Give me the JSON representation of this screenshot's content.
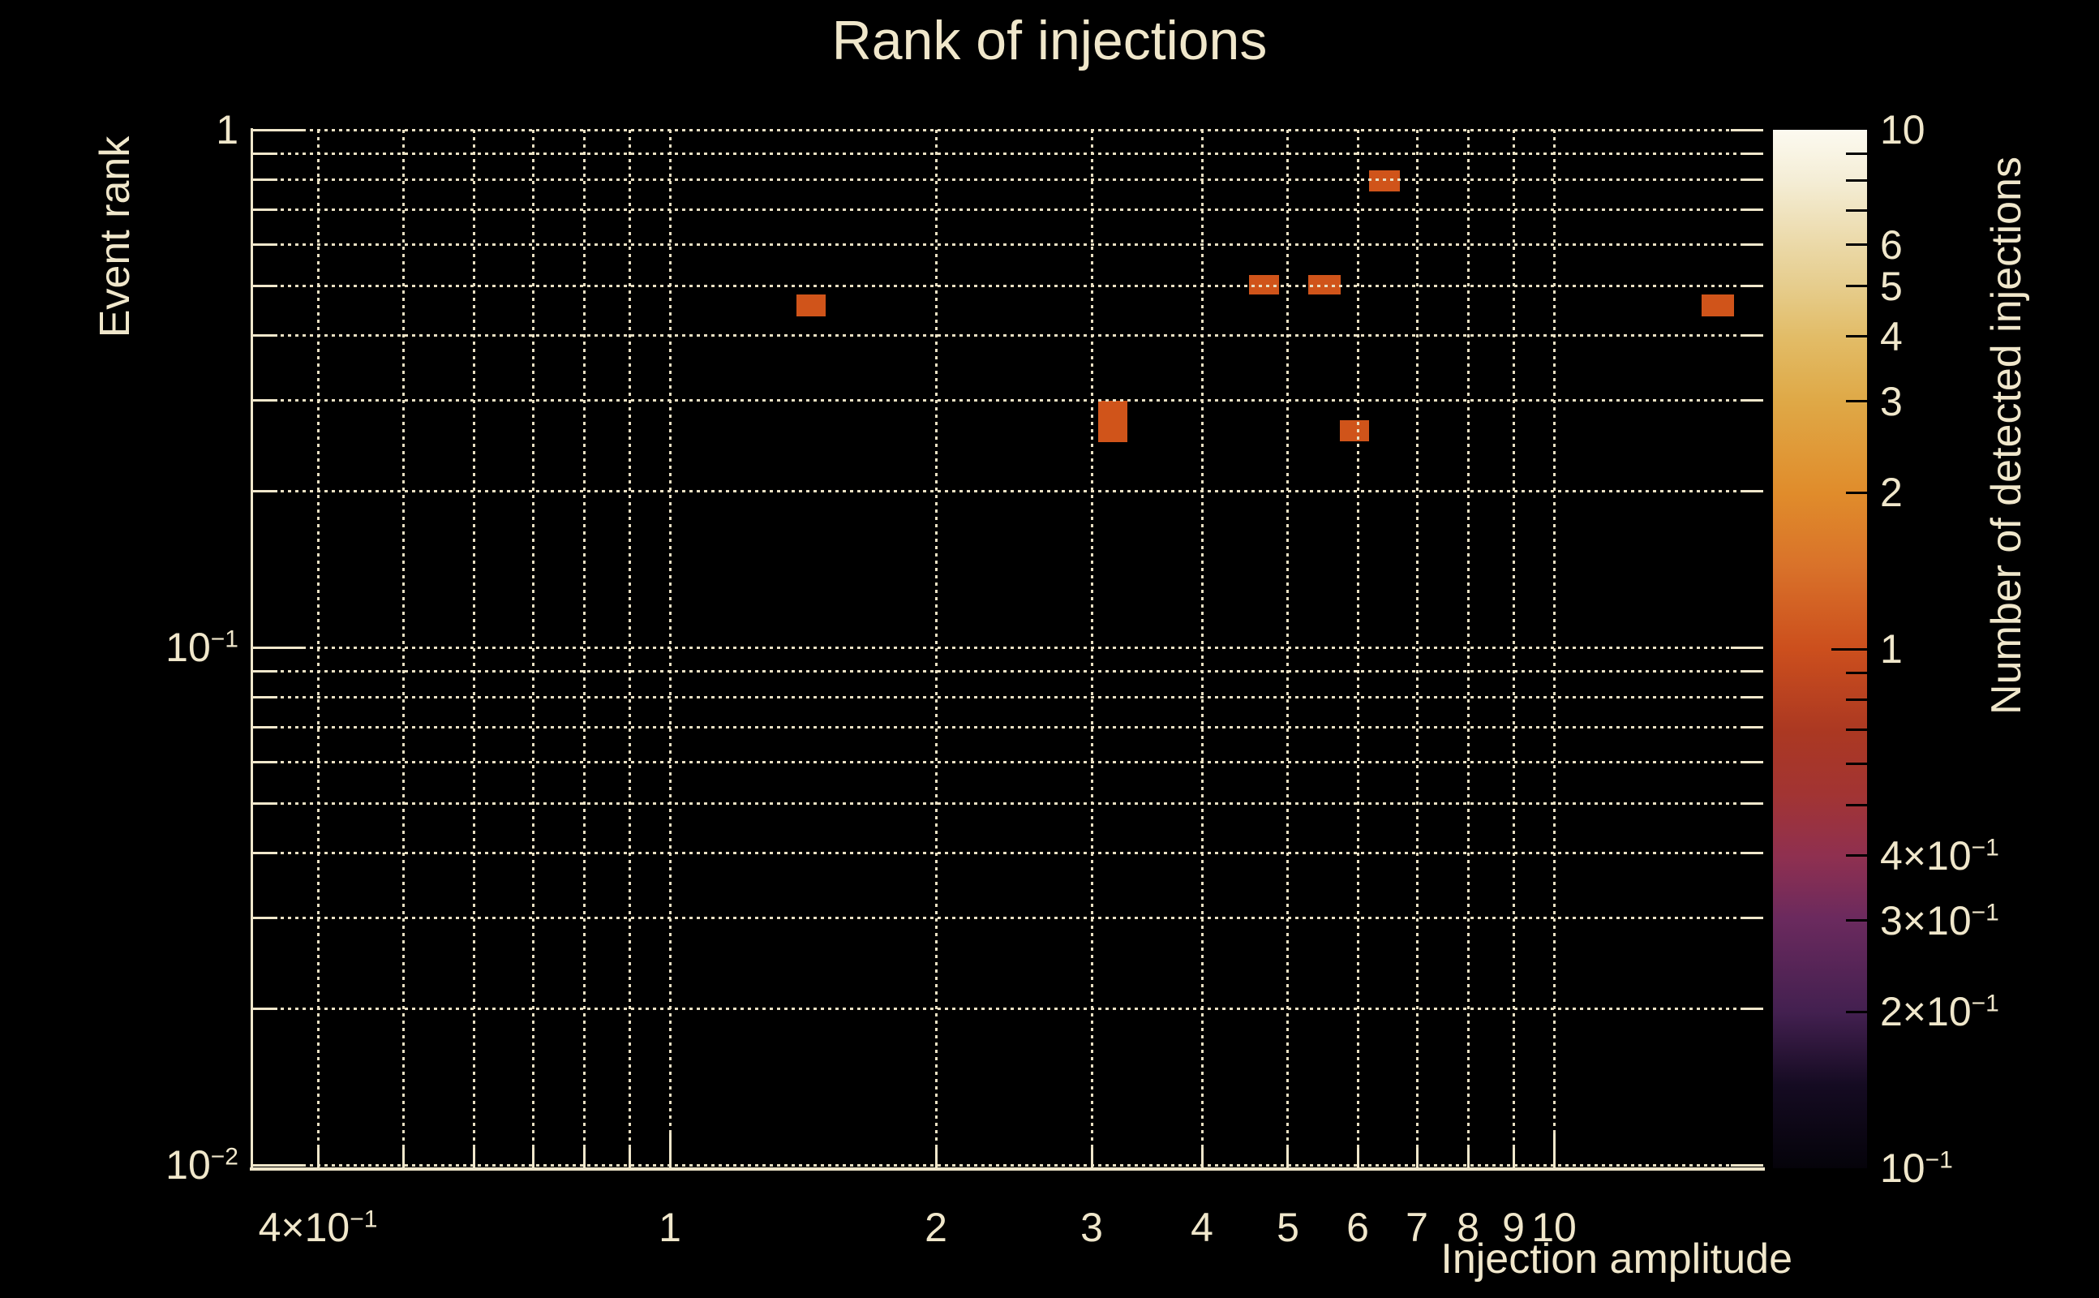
{
  "title": "Rank of injections",
  "colors": {
    "background": "#000000",
    "text": "#f0e7cb",
    "grid": "#eae0c3",
    "spine": "#f0e7cb",
    "bin_fill": "#d0541a",
    "colorbar_tick": "#000000"
  },
  "x_axis": {
    "label": "Injection amplitude",
    "scale": "log",
    "range": [
      0.336,
      17.25
    ],
    "tick_labels": [
      {
        "value": 0.4,
        "text": "4×10",
        "sup": "−1"
      },
      {
        "value": 1,
        "text": "1"
      },
      {
        "value": 2,
        "text": "2"
      },
      {
        "value": 3,
        "text": "3"
      },
      {
        "value": 4,
        "text": "4"
      },
      {
        "value": 5,
        "text": "5"
      },
      {
        "value": 6,
        "text": "6"
      },
      {
        "value": 7,
        "text": "7"
      },
      {
        "value": 8,
        "text": "8"
      },
      {
        "value": 9,
        "text": "9"
      },
      {
        "value": 10,
        "text": "10"
      }
    ],
    "gridline_values": [
      0.4,
      0.5,
      0.6,
      0.7,
      0.8,
      0.9,
      1,
      2,
      3,
      4,
      5,
      6,
      7,
      8,
      9,
      10
    ],
    "major_tick_values": [
      1,
      10
    ]
  },
  "y_axis": {
    "label": "Event rank",
    "scale": "log",
    "range": [
      0.01,
      1
    ],
    "tick_labels": [
      {
        "value": 1,
        "text": "1"
      },
      {
        "value": 0.1,
        "text": "10",
        "sup": "−1"
      },
      {
        "value": 0.01,
        "text": "10",
        "sup": "−2"
      }
    ],
    "gridline_values": [
      1,
      0.9,
      0.8,
      0.7,
      0.6,
      0.5,
      0.4,
      0.3,
      0.2,
      0.1,
      0.09,
      0.08,
      0.07,
      0.06,
      0.05,
      0.04,
      0.03,
      0.02,
      0.01
    ],
    "major_tick_values": [
      1,
      0.1,
      0.01
    ]
  },
  "colorbar": {
    "title": "Number of detected injections",
    "scale": "log",
    "range": [
      0.1,
      10
    ],
    "tick_labels": [
      {
        "value": 10,
        "text": "10"
      },
      {
        "value": 6,
        "text": "6"
      },
      {
        "value": 5,
        "text": "5"
      },
      {
        "value": 4,
        "text": "4"
      },
      {
        "value": 3,
        "text": "3"
      },
      {
        "value": 2,
        "text": "2"
      },
      {
        "value": 1,
        "text": "1"
      },
      {
        "value": 0.4,
        "text": "4×10",
        "sup": "−1"
      },
      {
        "value": 0.3,
        "text": "3×10",
        "sup": "−1"
      },
      {
        "value": 0.2,
        "text": "2×10",
        "sup": "−1"
      },
      {
        "value": 0.1,
        "text": "10",
        "sup": "−1"
      }
    ],
    "minor_tick_values": [
      9,
      8,
      7,
      6,
      5,
      4,
      3,
      2,
      0.9,
      0.8,
      0.7,
      0.6,
      0.5,
      0.4,
      0.3,
      0.2
    ],
    "major_tick_values": [
      1
    ],
    "gradient_stops": [
      {
        "t": 0.0,
        "color": "#05030a"
      },
      {
        "t": 0.08,
        "color": "#150b22"
      },
      {
        "t": 0.15,
        "color": "#432050"
      },
      {
        "t": 0.24,
        "color": "#6b2a5e"
      },
      {
        "t": 0.3,
        "color": "#8f3050"
      },
      {
        "t": 0.36,
        "color": "#a23433"
      },
      {
        "t": 0.42,
        "color": "#ab3822"
      },
      {
        "t": 0.5,
        "color": "#cc4f1d"
      },
      {
        "t": 0.58,
        "color": "#d9722a"
      },
      {
        "t": 0.65,
        "color": "#e08c2b"
      },
      {
        "t": 0.74,
        "color": "#dfa947"
      },
      {
        "t": 0.8,
        "color": "#e2bc67"
      },
      {
        "t": 0.85,
        "color": "#e6cd8d"
      },
      {
        "t": 0.89,
        "color": "#ebd9a8"
      },
      {
        "t": 0.95,
        "color": "#f4edd5"
      },
      {
        "t": 1.0,
        "color": "#fcfaf0"
      }
    ]
  },
  "chart_data": {
    "type": "heatmap",
    "title": "Rank of injections",
    "xlabel": "Injection amplitude",
    "ylabel": "Event rank",
    "zlabel": "Number of detected injections",
    "xscale": "log",
    "yscale": "log",
    "zscale": "log",
    "xlim": [
      0.336,
      17.25
    ],
    "ylim": [
      0.01,
      1.0
    ],
    "zlim": [
      0.1,
      10
    ],
    "grid": true,
    "legend_position": "right-colorbar",
    "bins": [
      {
        "x_min": 1.39,
        "x_max": 1.5,
        "y_min": 0.436,
        "y_max": 0.481,
        "count": 1
      },
      {
        "x_min": 3.05,
        "x_max": 3.29,
        "y_min": 0.25,
        "y_max": 0.3,
        "count": 1
      },
      {
        "x_min": 4.52,
        "x_max": 4.89,
        "y_min": 0.481,
        "y_max": 0.524,
        "count": 1
      },
      {
        "x_min": 5.27,
        "x_max": 5.73,
        "y_min": 0.481,
        "y_max": 0.524,
        "count": 1
      },
      {
        "x_min": 5.73,
        "x_max": 6.18,
        "y_min": 0.25,
        "y_max": 0.275,
        "count": 1
      },
      {
        "x_min": 6.18,
        "x_max": 6.7,
        "y_min": 0.76,
        "y_max": 0.835,
        "count": 1
      },
      {
        "x_min": 14.7,
        "x_max": 16.0,
        "y_min": 0.436,
        "y_max": 0.481,
        "count": 1
      }
    ]
  }
}
